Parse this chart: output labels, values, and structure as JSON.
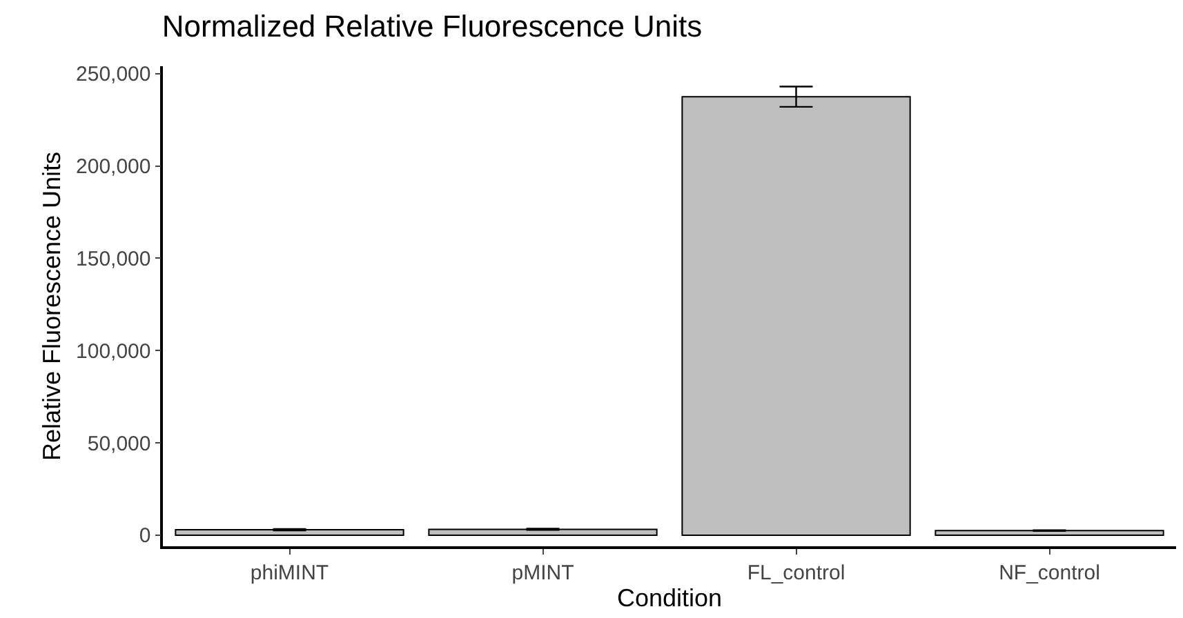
{
  "chart_data": {
    "type": "bar",
    "title": "Normalized Relative Fluorescence Units",
    "xlabel": "Condition",
    "ylabel": "Relative Fluorescence Units",
    "categories": [
      "phiMINT",
      "pMINT",
      "FL_control",
      "NF_control"
    ],
    "values": [
      3000,
      3200,
      237500,
      2500
    ],
    "errors": [
      400,
      300,
      5500,
      200
    ],
    "color": "#bebebe",
    "ylim": [
      -6000,
      254000
    ],
    "yticks": [
      {
        "value": 0,
        "label": "0"
      },
      {
        "value": 50000,
        "label": "50,000"
      },
      {
        "value": 100000,
        "label": "100,000"
      },
      {
        "value": 150000,
        "label": "150,000"
      },
      {
        "value": 200000,
        "label": "200,000"
      },
      {
        "value": 250000,
        "label": "250,000"
      }
    ],
    "grid": false
  }
}
